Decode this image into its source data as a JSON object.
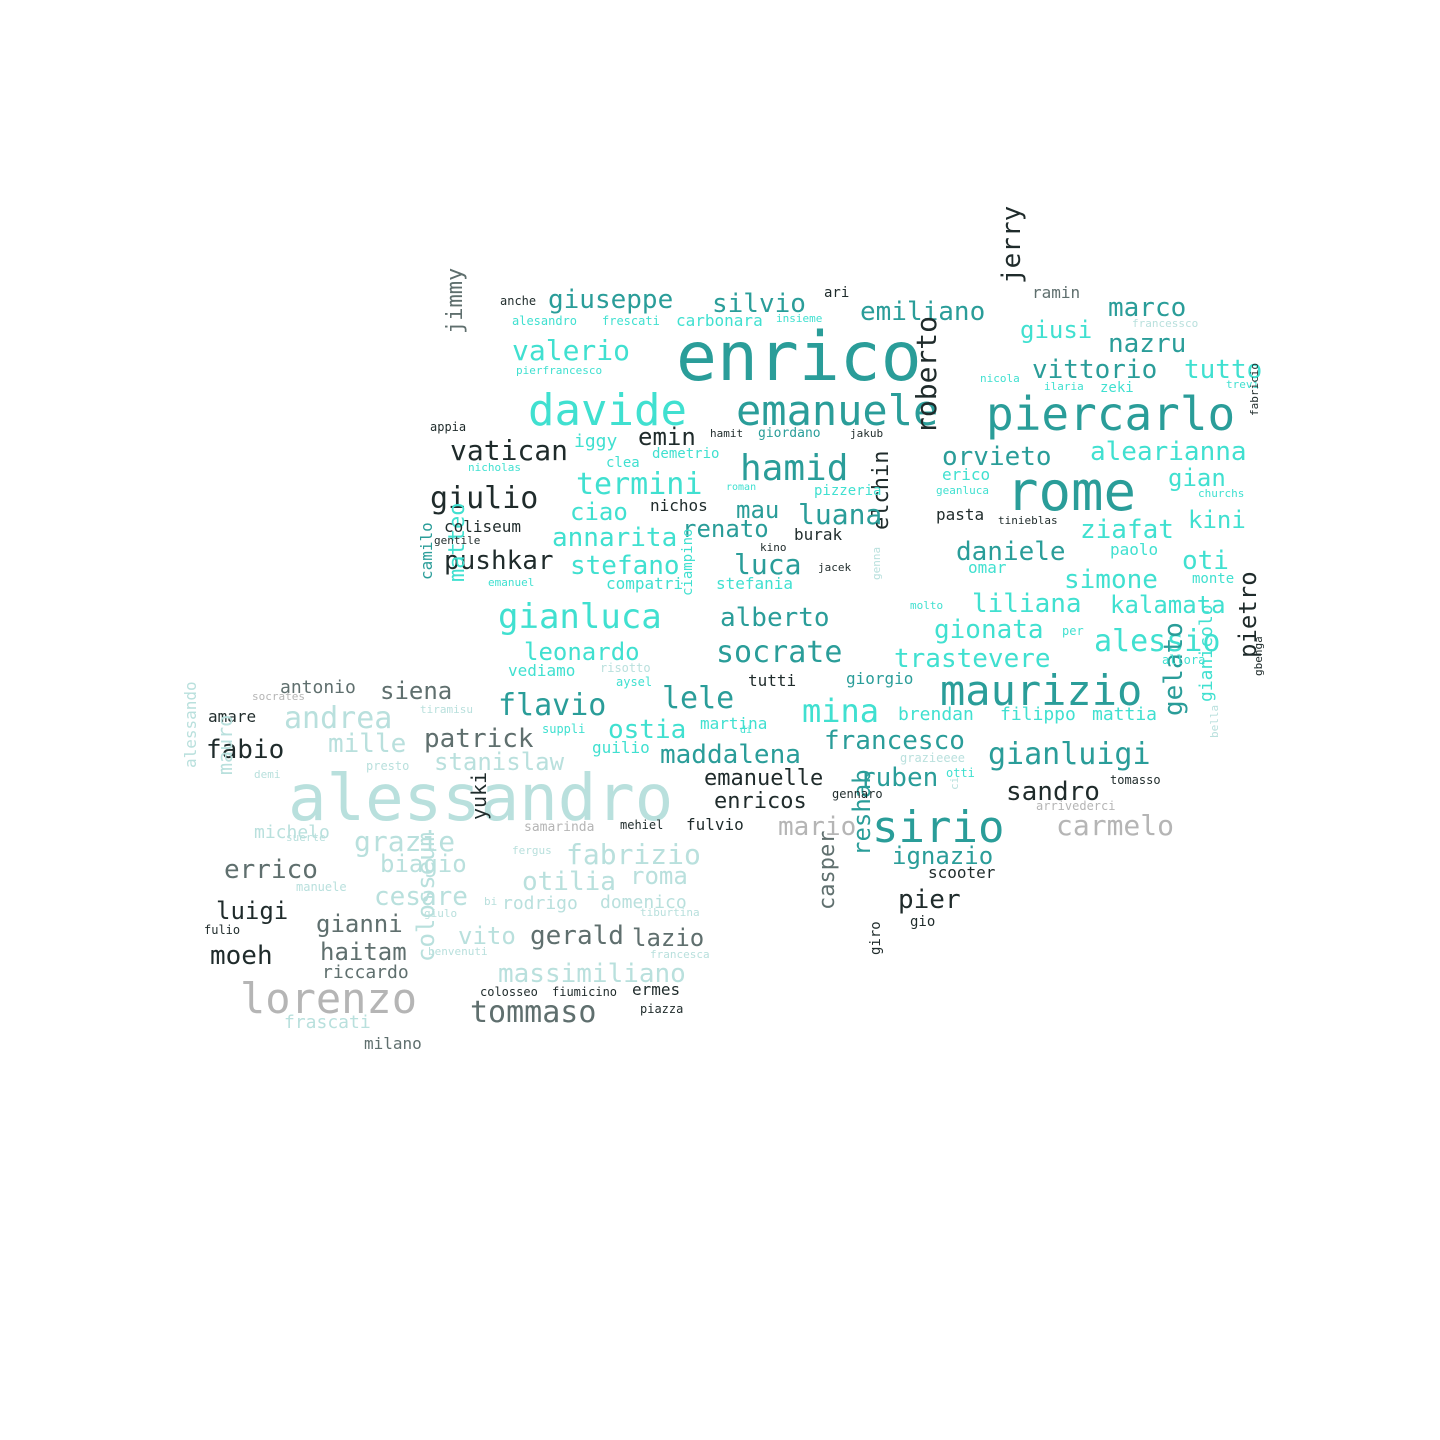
{
  "colors": {
    "teal": "#2a9d99",
    "aqua": "#40e0d0",
    "pale": "#b9e0dd",
    "grey": "#b5b5b5",
    "slate": "#5f6f6e",
    "dark": "#1f2b2b"
  },
  "words": [
    "enrico",
    "alessandro",
    "rome",
    "piercarlo",
    "emanuele",
    "davide",
    "maurizio",
    "sirio",
    "lorenzo",
    "hamid",
    "gianluca",
    "giulio",
    "termini",
    "gianluigi",
    "mina",
    "socrate",
    "flavio",
    "valerio",
    "giuseppe",
    "silvio",
    "emiliano",
    "marco",
    "nazru",
    "vittorio",
    "tutto",
    "giusi",
    "jerry",
    "jimmy",
    "vatican",
    "emin",
    "orvieto",
    "alearianna",
    "gian",
    "kini",
    "ziafat",
    "oti",
    "simone",
    "daniele",
    "liliana",
    "kalamata",
    "alessio",
    "gionata",
    "trastevere",
    "roberto",
    "elchin",
    "luana",
    "luca",
    "mau",
    "renato",
    "annarita",
    "ciao",
    "pushkar",
    "stefano",
    "alberto",
    "leonardo",
    "lele",
    "ostia",
    "maddalena",
    "francesco",
    "brendan",
    "filippo",
    "mattia",
    "pietro",
    "gelato",
    "gianicolo",
    "sandro",
    "ruben",
    "emanuelle",
    "enricos",
    "mario",
    "carmelo",
    "ignazio",
    "reshab",
    "pier",
    "casper",
    "andrea",
    "mille",
    "patrick",
    "stanislaw",
    "fabrizio",
    "grazie",
    "biagio",
    "otilia",
    "roma",
    "cesare",
    "rodrigo",
    "domenico",
    "vito",
    "gerald",
    "lazio",
    "massimiliano",
    "tommaso",
    "fabio",
    "errico",
    "luigi",
    "gianni",
    "haitam",
    "moeh",
    "riccardo",
    "frascati",
    "colosseum",
    "siena",
    "antonio",
    "amare",
    "matteo",
    "camilo",
    "coliseum",
    "yuki",
    "mauro",
    "michelo",
    "alessando",
    "ari",
    "anche",
    "ramin",
    "carbonara",
    "alesandro",
    "frescati",
    "insieme",
    "francessco",
    "pierfrancesco",
    "nicola",
    "ilaria",
    "zeki",
    "trevi",
    "fabricio",
    "appia",
    "iggy",
    "hamit",
    "giordano",
    "jakub",
    "clea",
    "demetrio",
    "nicholas",
    "roman",
    "pizzeria",
    "pasta",
    "erico",
    "geanluca",
    "churchs",
    "tinieblas",
    "nichos",
    "burak",
    "kino",
    "gentile",
    "jacek",
    "omar",
    "paolo",
    "compatri",
    "stefania",
    "emanuel",
    "monte",
    "molto",
    "per",
    "genna",
    "ciampino",
    "vediamo",
    "risotto",
    "aysel",
    "tutti",
    "giorgio",
    "allora",
    "bella",
    "gbenga",
    "socrates",
    "tiramisu",
    "suppli",
    "di",
    "martina",
    "guilio",
    "presto",
    "demi",
    "grazieeee",
    "otti",
    "ci",
    "tomasso",
    "gennaro",
    "arrivederci",
    "samarinda",
    "mehiel",
    "fulvio",
    "suerte",
    "fergus",
    "manuele",
    "giulo",
    "bi",
    "tiburtina",
    "fulio",
    "benvenuti",
    "francesca",
    "colosseo",
    "fiumicino",
    "ermes",
    "piazza",
    "milano",
    "scooter",
    "gio",
    "giro"
  ]
}
